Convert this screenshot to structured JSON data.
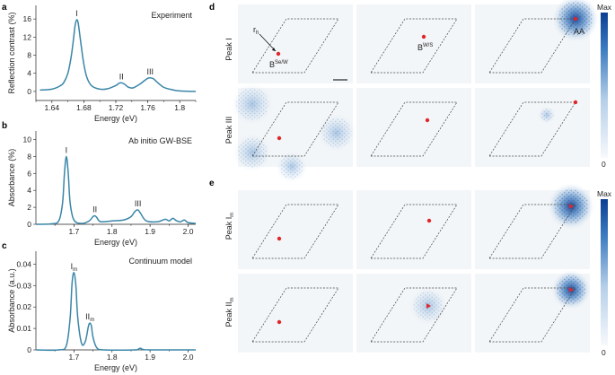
{
  "chart_data": [
    {
      "panel": "a",
      "type": "line",
      "title": "Experiment",
      "xlabel": "Energy (eV)",
      "ylabel": "Reflection contrast (%)",
      "xlim": [
        1.62,
        1.82
      ],
      "ylim": [
        -2,
        19
      ],
      "xticks": [
        1.64,
        1.68,
        1.72,
        1.76,
        1.8
      ],
      "xtick_labels": [
        "1.64",
        "1.68",
        "1.72",
        "1.76",
        "1.8"
      ],
      "yticks": [
        0,
        4,
        8,
        12,
        16
      ],
      "yticks_labels": [
        "0",
        "4",
        "8",
        "12",
        "16"
      ],
      "peaks": [
        {
          "label": "I",
          "x": 1.671,
          "y": 15.8
        },
        {
          "label": "II",
          "x": 1.727,
          "y": 1.9
        },
        {
          "label": "III",
          "x": 1.763,
          "y": 3.0
        }
      ],
      "series": [
        {
          "name": "Experiment",
          "color": "#3a86a8",
          "x": [
            1.625,
            1.64,
            1.65,
            1.655,
            1.66,
            1.664,
            1.667,
            1.669,
            1.671,
            1.673,
            1.676,
            1.68,
            1.684,
            1.69,
            1.7,
            1.71,
            1.72,
            1.724,
            1.727,
            1.731,
            1.736,
            1.742,
            1.75,
            1.756,
            1.76,
            1.763,
            1.767,
            1.772,
            1.78,
            1.79,
            1.8,
            1.82
          ],
          "y": [
            0.3,
            0.5,
            1.2,
            2.0,
            4.0,
            7.5,
            11.5,
            14.5,
            15.8,
            15.0,
            11.0,
            6.0,
            3.0,
            1.2,
            0.5,
            0.6,
            1.3,
            1.8,
            1.9,
            1.6,
            0.9,
            0.8,
            1.6,
            2.4,
            2.9,
            3.0,
            2.8,
            2.0,
            0.9,
            0.4,
            0.1,
            0.0
          ]
        }
      ]
    },
    {
      "panel": "b",
      "type": "line",
      "title": "Ab initio GW-BSE",
      "xlabel": "Energy (eV)",
      "ylabel": "Absorbance (%)",
      "xlim": [
        1.6,
        2.02
      ],
      "ylim": [
        0,
        11
      ],
      "xticks": [
        1.7,
        1.8,
        1.9,
        2.0
      ],
      "xtick_labels": [
        "1.7",
        "1.8",
        "1.9",
        "2.0"
      ],
      "yticks": [
        0,
        2,
        4,
        6,
        8,
        10
      ],
      "yticks_labels": [
        "0",
        "2",
        "4",
        "6",
        "8",
        "10"
      ],
      "peaks": [
        {
          "label": "I",
          "x": 1.68,
          "y": 8.0
        },
        {
          "label": "II",
          "x": 1.755,
          "y": 1.0
        },
        {
          "label": "III",
          "x": 1.868,
          "y": 1.7
        }
      ],
      "series": [
        {
          "name": "GW-BSE",
          "color": "#3a86a8",
          "x": [
            1.6,
            1.64,
            1.66,
            1.67,
            1.675,
            1.68,
            1.685,
            1.69,
            1.7,
            1.72,
            1.74,
            1.75,
            1.755,
            1.76,
            1.77,
            1.8,
            1.83,
            1.85,
            1.86,
            1.868,
            1.875,
            1.89,
            1.92,
            1.94,
            1.95,
            1.96,
            1.97,
            1.98,
            1.99,
            2.0,
            2.02
          ],
          "y": [
            0.0,
            0.05,
            0.4,
            2.5,
            6.0,
            8.0,
            6.0,
            2.5,
            0.5,
            0.1,
            0.4,
            0.9,
            1.0,
            0.8,
            0.3,
            0.4,
            0.5,
            0.9,
            1.5,
            1.7,
            1.3,
            0.4,
            0.3,
            0.6,
            0.4,
            0.7,
            0.4,
            0.3,
            0.5,
            0.2,
            0.1
          ]
        }
      ]
    },
    {
      "panel": "c",
      "type": "line",
      "title": "Continuum model",
      "xlabel": "Energy (eV)",
      "ylabel": "Absorbance (a.u.)",
      "xlim": [
        1.6,
        2.02
      ],
      "ylim": [
        0,
        0.046
      ],
      "xticks": [
        1.7,
        1.8,
        1.9,
        2.0
      ],
      "xtick_labels": [
        "1.7",
        "1.8",
        "1.9",
        "2.0"
      ],
      "yticks": [
        0,
        0.01,
        0.02,
        0.03,
        0.04
      ],
      "yticks_labels": [
        "0",
        "0.01",
        "0.02",
        "0.03",
        "0.04"
      ],
      "peaks": [
        {
          "label": "I",
          "sub": "m",
          "x": 1.7,
          "y": 0.036
        },
        {
          "label": "II",
          "sub": "m",
          "x": 1.742,
          "y": 0.0125
        }
      ],
      "series": [
        {
          "name": "Continuum model",
          "color": "#3a86a8",
          "x": [
            1.6,
            1.66,
            1.68,
            1.69,
            1.695,
            1.7,
            1.705,
            1.71,
            1.72,
            1.73,
            1.738,
            1.742,
            1.746,
            1.75,
            1.76,
            1.78,
            1.86,
            1.87,
            1.875,
            1.88,
            1.9,
            2.02
          ],
          "y": [
            0.0,
            0.0,
            0.002,
            0.015,
            0.031,
            0.036,
            0.03,
            0.015,
            0.003,
            0.004,
            0.011,
            0.0125,
            0.011,
            0.006,
            0.001,
            0.0,
            0.0,
            0.0005,
            0.0008,
            0.0003,
            0.0,
            0.0
          ]
        }
      ]
    }
  ],
  "panel_labels": {
    "a": "a",
    "b": "b",
    "c": "c",
    "d": "d",
    "e": "e"
  },
  "maps_d": {
    "rows": [
      "Peak I",
      "Peak III"
    ],
    "labels": {
      "rh": "r",
      "rh_sub": "h",
      "b_sew": "B",
      "b_sew_sup": "Se/W",
      "b_ws": "B",
      "b_ws_sup": "W/S",
      "aa": "AA"
    },
    "colorbar": {
      "max": "Max",
      "min": "0"
    }
  },
  "maps_e": {
    "rows": [
      {
        "base": "Peak I",
        "sub": "m"
      },
      {
        "base": "Peak II",
        "sub": "m"
      }
    ],
    "colorbar": {
      "max": "Max",
      "min": "0"
    }
  },
  "colors": {
    "curve": "#3a86a8",
    "map_dark": "#0b3d91",
    "dot": "#e0262d"
  }
}
